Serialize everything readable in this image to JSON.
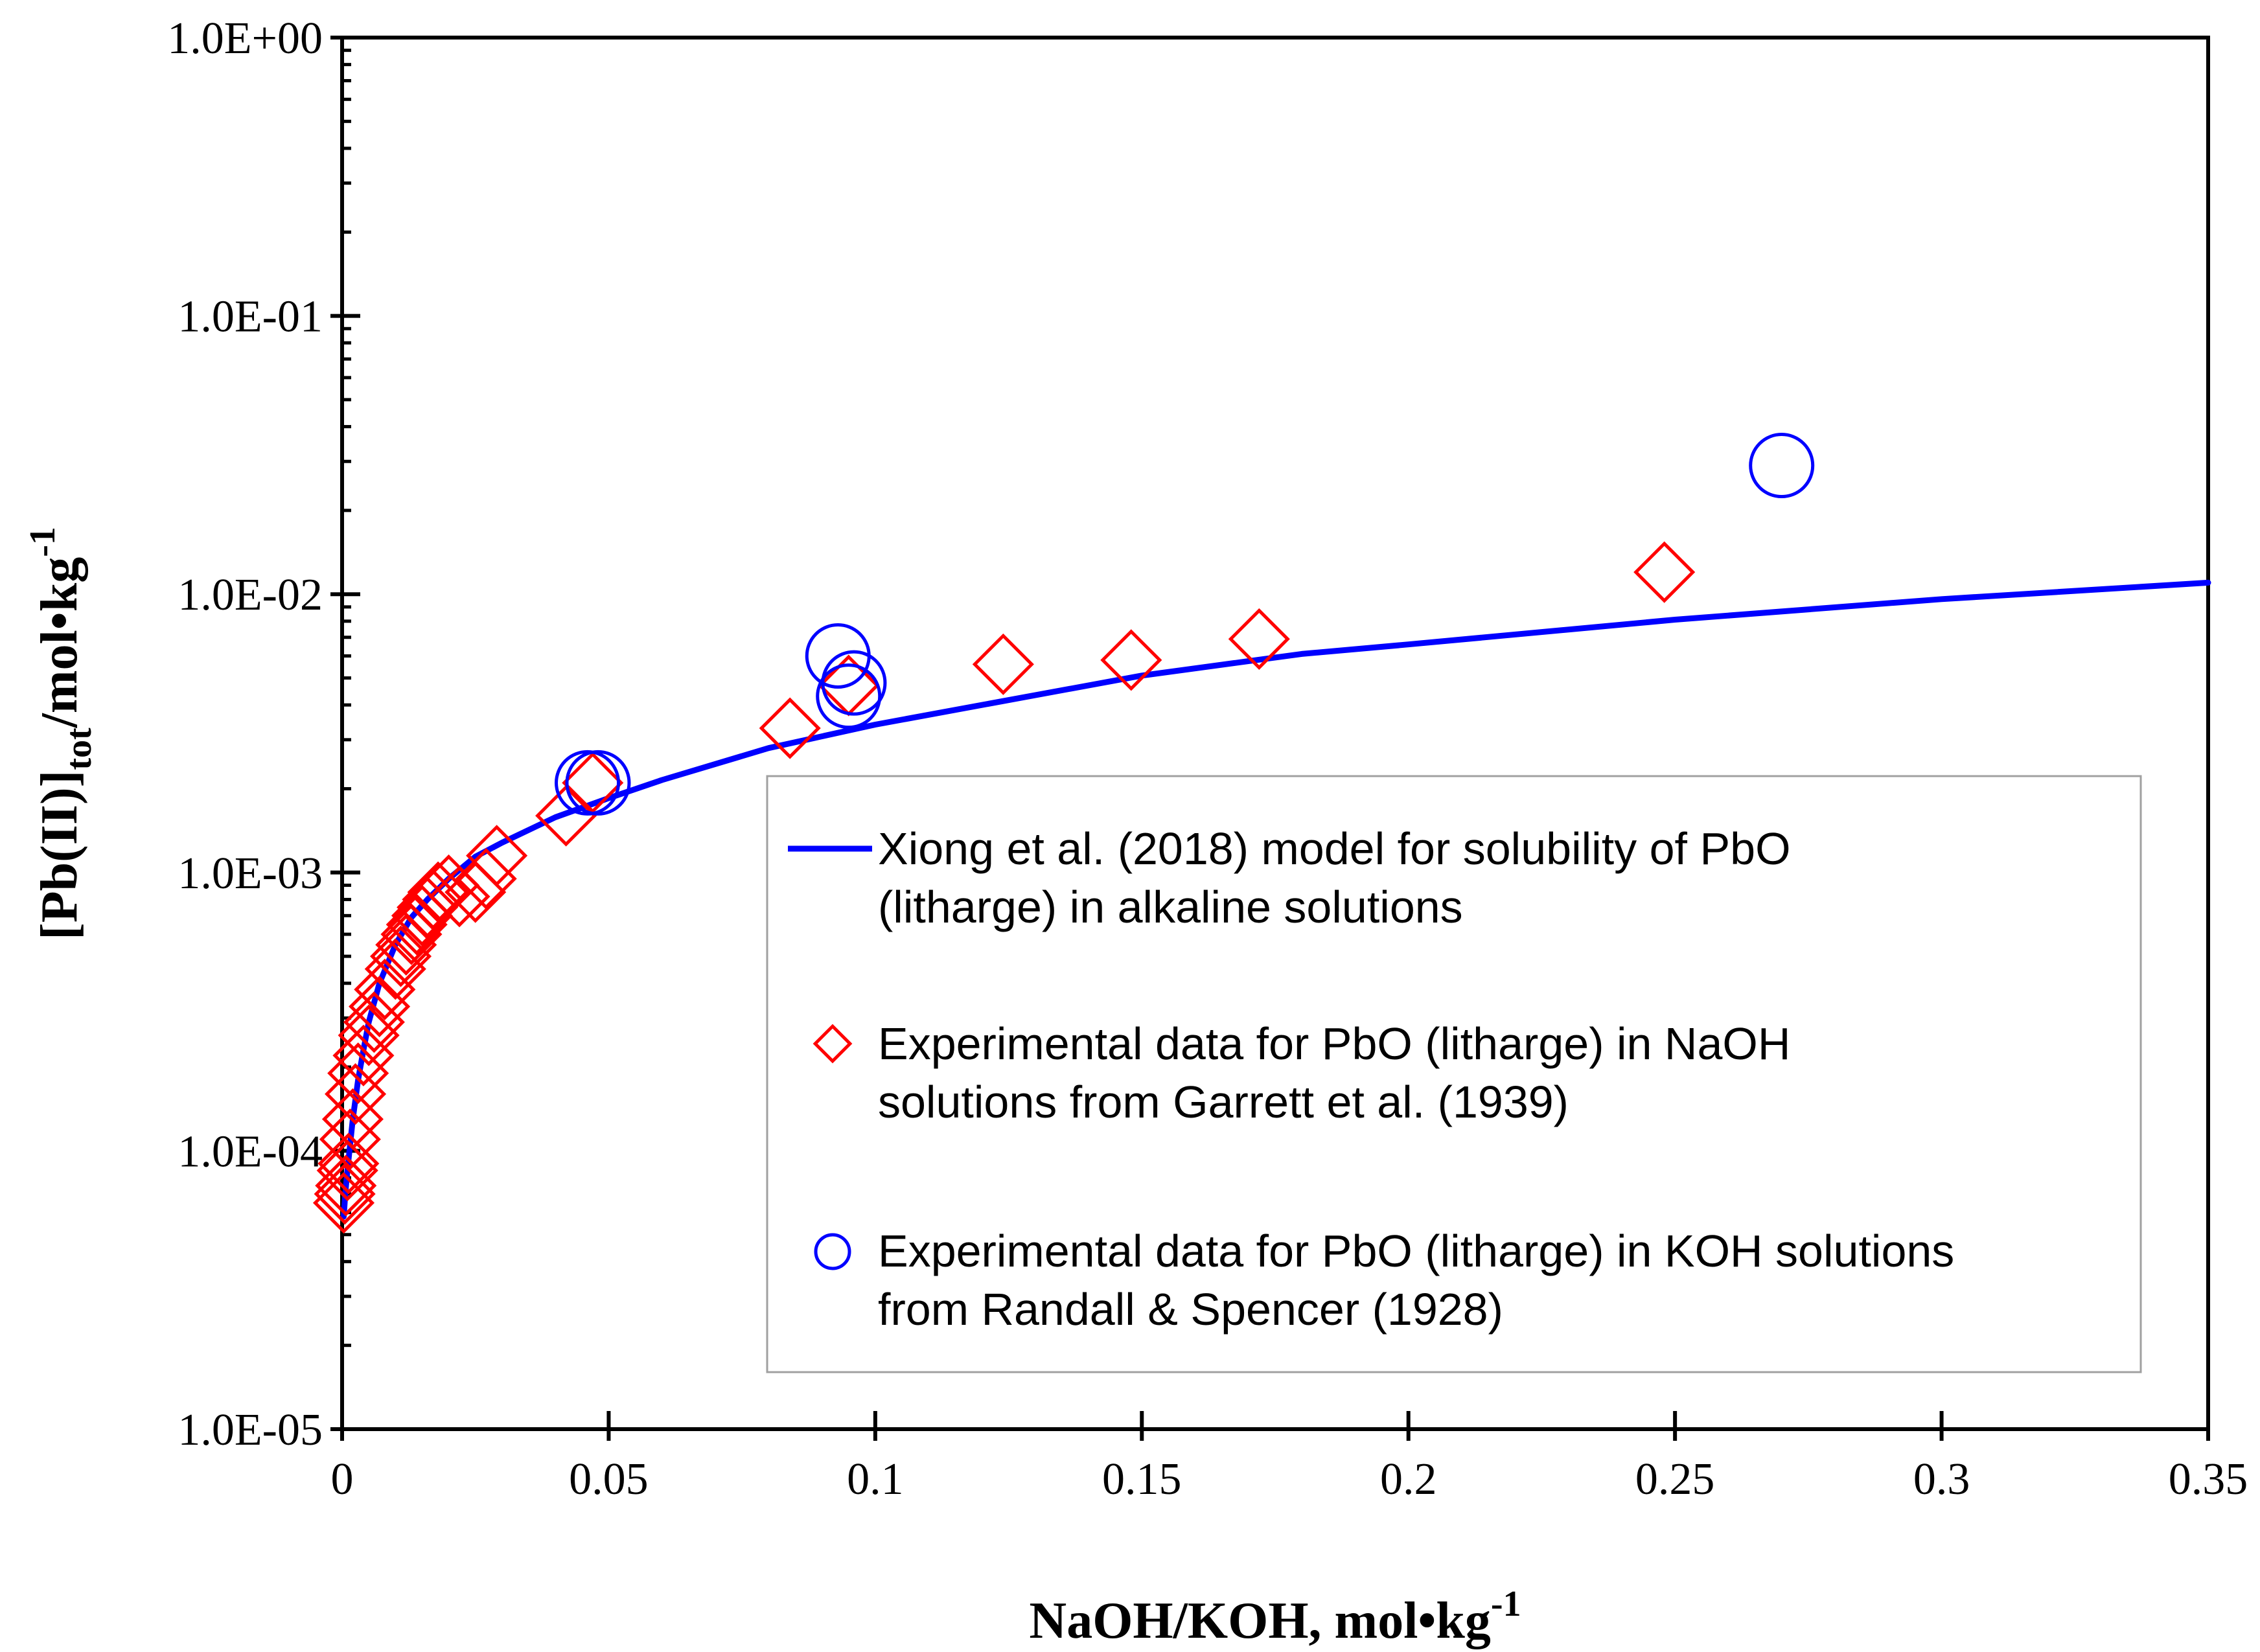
{
  "chart_data": {
    "type": "scatter",
    "title": "",
    "xlabel": "NaOH/KOH, mol•kg",
    "xlabel_superscript": "-1",
    "ylabel": "[Pb(II)]",
    "ylabel_subscript": "tot",
    "ylabel_tail": "/mol•kg",
    "ylabel_superscript": "-1",
    "xlim": [
      0,
      0.35
    ],
    "ylim": [
      1e-05,
      1
    ],
    "yscale": "log",
    "x_ticks": [
      0,
      0.05,
      0.1,
      0.15,
      0.2,
      0.25,
      0.3,
      0.35
    ],
    "x_tick_labels": [
      "0",
      "0.05",
      "0.1",
      "0.15",
      "0.2",
      "0.25",
      "0.3",
      "0.35"
    ],
    "y_ticks": [
      1e-05,
      0.0001,
      0.001,
      0.01,
      0.1,
      1
    ],
    "y_tick_labels": [
      "1.0E-05",
      "1.0E-04",
      "1.0E-03",
      "1.0E-02",
      "1.0E-01",
      "1.0E+00"
    ],
    "grid": false,
    "legend_position": "bottom-right",
    "series": [
      {
        "name": "Xiong et al. (2018) model for solubility of PbO (litharge) in alkaline solutions",
        "legend_lines": [
          "Xiong et al. (2018) model for solubility of PbO",
          "(litharge) in alkaline solutions"
        ],
        "kind": "line",
        "color": "#0000ff",
        "x": [
          0.0003,
          0.0006,
          0.001,
          0.0015,
          0.002,
          0.003,
          0.004,
          0.005,
          0.007,
          0.01,
          0.013,
          0.016,
          0.02,
          0.025,
          0.03,
          0.04,
          0.05,
          0.06,
          0.08,
          0.1,
          0.12,
          0.15,
          0.18,
          0.2,
          0.25,
          0.3,
          0.35
        ],
        "y": [
          5.8e-05,
          7e-05,
          8.5e-05,
          0.000105,
          0.00013,
          0.00018,
          0.00023,
          0.00029,
          0.0004,
          0.00055,
          0.00069,
          0.0008,
          0.00095,
          0.00114,
          0.00128,
          0.00158,
          0.00185,
          0.00215,
          0.0028,
          0.0034,
          0.004,
          0.0051,
          0.0061,
          0.0066,
          0.0081,
          0.0096,
          0.011
        ]
      },
      {
        "name": "Experimental data for PbO (litharge) in NaOH solutions from Garrett et al. (1939)",
        "legend_lines": [
          "Experimental data for PbO (litharge) in NaOH",
          "solutions from Garrett et al. (1939)"
        ],
        "kind": "marker",
        "marker": "diamond",
        "color": "#ff0000",
        "x": [
          0.0003,
          0.0005,
          0.0007,
          0.001,
          0.0012,
          0.0015,
          0.002,
          0.0025,
          0.003,
          0.004,
          0.005,
          0.006,
          0.007,
          0.008,
          0.01,
          0.011,
          0.012,
          0.013,
          0.014,
          0.015,
          0.016,
          0.017,
          0.018,
          0.02,
          0.022,
          0.025,
          0.027,
          0.029,
          0.042,
          0.047,
          0.084,
          0.095,
          0.124,
          0.148,
          0.172,
          0.248
        ],
        "y": [
          6.5e-05,
          7e-05,
          7.5e-05,
          8.5e-05,
          9e-05,
          0.00011,
          0.00013,
          0.00016,
          0.00019,
          0.00022,
          0.00026,
          0.00029,
          0.00033,
          0.00038,
          0.00045,
          0.0005,
          0.00055,
          0.0006,
          0.00065,
          0.0007,
          0.00075,
          0.0008,
          0.00085,
          0.0009,
          0.00082,
          0.00085,
          0.00095,
          0.00115,
          0.0016,
          0.0021,
          0.0033,
          0.0047,
          0.0056,
          0.0058,
          0.0069,
          0.012
        ]
      },
      {
        "name": "Experimental data for PbO (litharge) in KOH solutions from Randall & Spencer (1928)",
        "legend_lines": [
          "Experimental data for PbO (litharge) in KOH solutions",
          "from Randall & Spencer (1928)"
        ],
        "kind": "marker",
        "marker": "circle",
        "color": "#0000ff",
        "x": [
          0.046,
          0.048,
          0.093,
          0.095,
          0.096,
          0.27
        ],
        "y": [
          0.0021,
          0.0021,
          0.006,
          0.0043,
          0.0048,
          0.029
        ]
      }
    ]
  }
}
